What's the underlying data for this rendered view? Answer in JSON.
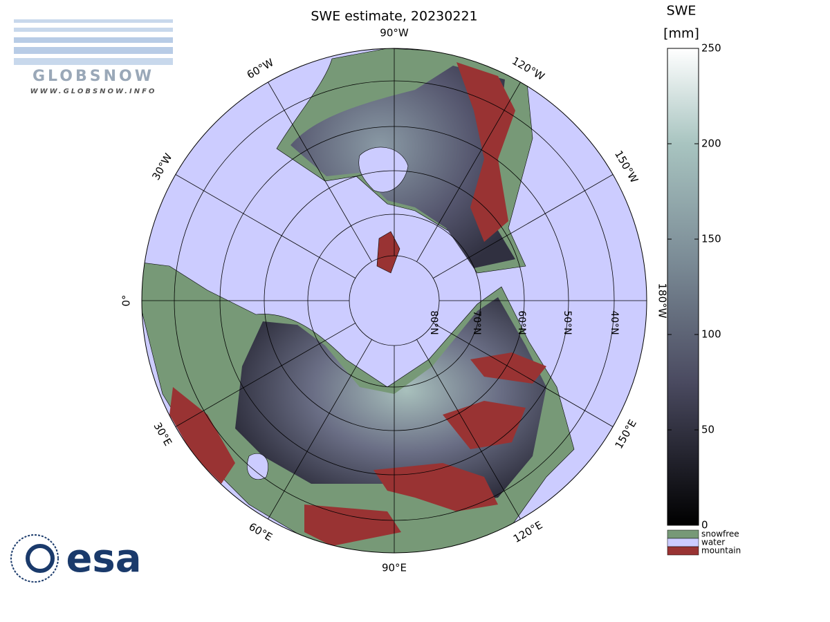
{
  "title": "SWE estimate, 20230221",
  "logo": {
    "name": "GLOBSNOW",
    "url": "WWW.GLOBSNOW.INFO"
  },
  "agency": "esa",
  "meridian_labels": [
    "0°",
    "30°W",
    "60°W",
    "90°W",
    "120°W",
    "150°W",
    "180°W",
    "150°E",
    "120°E",
    "90°E",
    "60°E",
    "30°E"
  ],
  "latitude_labels": [
    "80°N",
    "70°N",
    "60°N",
    "50°N",
    "40°N"
  ],
  "colorbar": {
    "title": [
      "SWE",
      "[mm]"
    ],
    "ylim": [
      0,
      250
    ],
    "ticks": [
      0,
      50,
      100,
      150,
      200,
      250
    ],
    "classes": [
      {
        "name": "snowfree",
        "color": "#779977"
      },
      {
        "name": "water",
        "color": "#ccccff"
      },
      {
        "name": "mountain",
        "color": "#993333"
      }
    ]
  }
}
